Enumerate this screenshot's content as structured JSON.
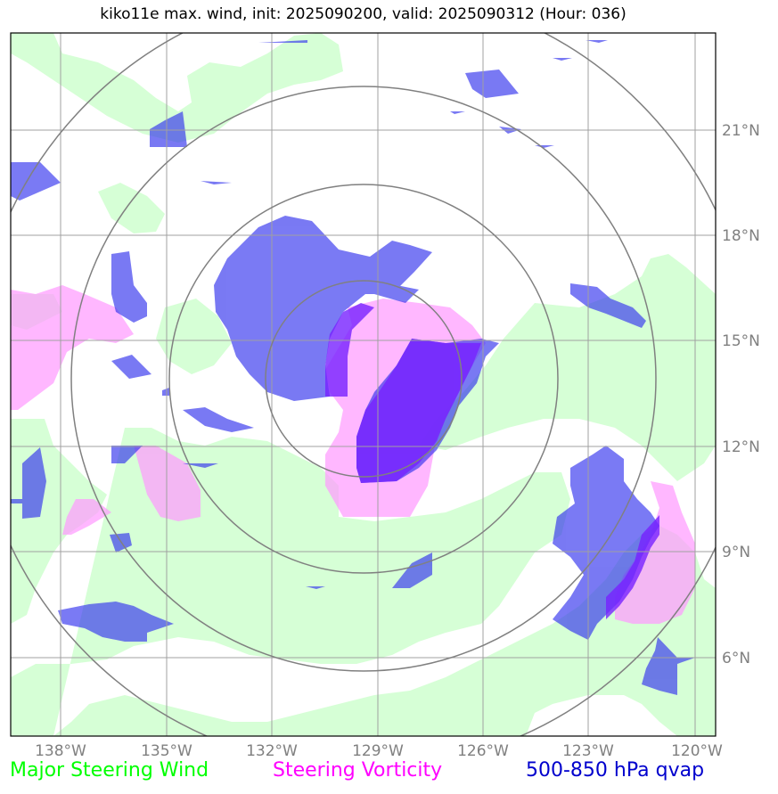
{
  "title": "kiko11e max. wind, init: 2025090200, valid: 2025090312 (Hour: 036)",
  "lat_labels": [
    "21°N",
    "18°N",
    "15°N",
    "12°N",
    "9°N",
    "6°N"
  ],
  "lon_labels": [
    "138°W",
    "135°W",
    "132°W",
    "129°W",
    "126°W",
    "123°W",
    "120°W"
  ],
  "legend": {
    "wind": "Major Steering Wind",
    "vorticity": "Steering Vorticity",
    "qvap": "500-850 hPa qvap"
  },
  "colors": {
    "wind_fill": "#ccffcc",
    "vorticity_fill": "#ff99ff",
    "qvap_fill": "#3333ee",
    "overlap_fill": "#7722ff",
    "grid": "#a0a0a0",
    "rings": "#808080",
    "wind_text": "#00ff00",
    "vorticity_text": "#ff00ff",
    "qvap_text": "#0000cd"
  }
}
